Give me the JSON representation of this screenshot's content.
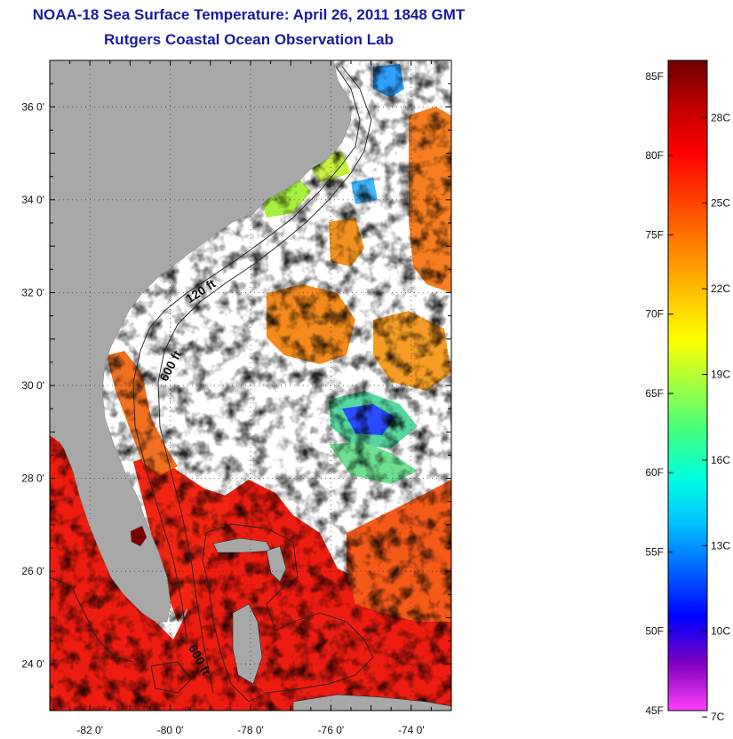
{
  "title_line1": "NOAA-18 Sea Surface Temperature:  April 26, 2011 1848 GMT",
  "title_line2": "Rutgers Coastal Ocean Observation Lab",
  "map": {
    "lon_range": [
      -83,
      -73
    ],
    "lat_range": [
      23,
      37
    ],
    "lon_ticks": [
      {
        "value": -82,
        "label": "-82 0'"
      },
      {
        "value": -80,
        "label": "-80 0'"
      },
      {
        "value": -78,
        "label": "-78 0'"
      },
      {
        "value": -76,
        "label": "-76 0'"
      },
      {
        "value": -74,
        "label": "-74 0'"
      }
    ],
    "lat_ticks": [
      {
        "value": 36,
        "label": "36 0'"
      },
      {
        "value": 34,
        "label": "34 0'"
      },
      {
        "value": 32,
        "label": "32 0'"
      },
      {
        "value": 30,
        "label": "30 0'"
      },
      {
        "value": 28,
        "label": "28 0'"
      },
      {
        "value": 26,
        "label": "26 0'"
      },
      {
        "value": 24,
        "label": "24 0'"
      }
    ],
    "contour_labels": [
      {
        "text": "120 ft"
      },
      {
        "text": "600 ft"
      },
      {
        "text": "600 ft"
      }
    ],
    "land_color": "#a8a8a8",
    "grid": "dotted"
  },
  "colorbar": {
    "min_f": 45,
    "max_f": 86,
    "fahrenheit_labels": [
      "85F",
      "80F",
      "75F",
      "70F",
      "65F",
      "60F",
      "55F",
      "50F",
      "45F"
    ],
    "celsius_labels": [
      "28C",
      "25C",
      "22C",
      "19C",
      "16C",
      "13C",
      "10C",
      "7C"
    ],
    "colors": [
      "#ff40ff",
      "#8000c0",
      "#0000ff",
      "#0060ff",
      "#00c0ff",
      "#00ffe0",
      "#40ff80",
      "#a0ff40",
      "#ffff00",
      "#ffc000",
      "#ff8000",
      "#ff4000",
      "#ff0000",
      "#c00000",
      "#700000"
    ]
  }
}
